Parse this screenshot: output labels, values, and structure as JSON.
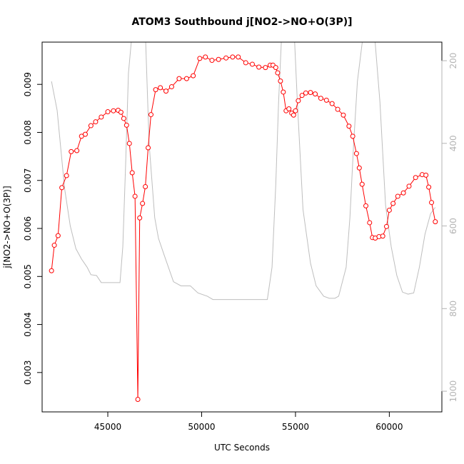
{
  "chart_data": {
    "type": "line",
    "title": "ATOM3 Southbound j[NO2->NO+O(3P)]",
    "xlabel": "UTC Seconds",
    "ylabel": "j[NO2->NO+O(3P)]",
    "xlim": [
      41500,
      62800
    ],
    "ylim": [
      0.00218,
      0.00988
    ],
    "x_ticks": [
      45000,
      50000,
      55000,
      60000
    ],
    "x_tick_labels": [
      "45000",
      "50000",
      "55000",
      "60000"
    ],
    "y_ticks": [
      0.003,
      0.004,
      0.005,
      0.006,
      0.007,
      0.008,
      0.009
    ],
    "y_tick_labels": [
      "0.003",
      "0.004",
      "0.005",
      "0.006",
      "0.007",
      "0.008",
      "0.009"
    ],
    "y2_ticks": [
      200,
      400,
      600,
      800,
      1000
    ],
    "y2_tick_labels": [
      "200",
      "400",
      "600",
      "800",
      "1000"
    ],
    "y2lim": [
      1050,
      155
    ],
    "colors": {
      "series": "#ff0000",
      "secondary": "#bebebe",
      "right_axis": "#b4b4b4"
    },
    "series": [
      {
        "color": "#ff0000",
        "marker": "open-circle",
        "x": [
          42000,
          42150,
          42350,
          42550,
          42800,
          43050,
          43350,
          43600,
          43800,
          44100,
          44350,
          44650,
          45000,
          45300,
          45550,
          45700,
          45850,
          46000,
          46150,
          46300,
          46450,
          46600,
          46700,
          46850,
          47000,
          47150,
          47300,
          47550,
          47800,
          48100,
          48400,
          48800,
          49200,
          49550,
          49900,
          50200,
          50550,
          50900,
          51300,
          51650,
          51950,
          52350,
          52700,
          53050,
          53400,
          53650,
          53800,
          53950,
          54050,
          54200,
          54350,
          54500,
          54650,
          54800,
          54900,
          55000,
          55150,
          55350,
          55550,
          55800,
          56050,
          56350,
          56650,
          56950,
          57250,
          57550,
          57850,
          58050,
          58250,
          58400,
          58550,
          58750,
          58950,
          59100,
          59250,
          59450,
          59650,
          59850,
          60000,
          60200,
          60450,
          60750,
          61050,
          61400,
          61750,
          61950,
          62100,
          62250,
          62450
        ],
        "y": [
          0.00512,
          0.00565,
          0.00585,
          0.00685,
          0.0071,
          0.0076,
          0.00762,
          0.00792,
          0.00796,
          0.00814,
          0.00822,
          0.00832,
          0.00843,
          0.00845,
          0.00846,
          0.00842,
          0.00829,
          0.00815,
          0.00777,
          0.00716,
          0.00667,
          0.00244,
          0.00622,
          0.00652,
          0.00687,
          0.00768,
          0.00837,
          0.00889,
          0.00893,
          0.00886,
          0.00895,
          0.00912,
          0.00912,
          0.00918,
          0.00954,
          0.00957,
          0.0095,
          0.00952,
          0.00955,
          0.00957,
          0.00957,
          0.00945,
          0.00942,
          0.00936,
          0.00935,
          0.0094,
          0.0094,
          0.00935,
          0.00924,
          0.00907,
          0.00884,
          0.00845,
          0.00849,
          0.0084,
          0.00836,
          0.00845,
          0.00866,
          0.00877,
          0.00882,
          0.00883,
          0.0088,
          0.00871,
          0.00867,
          0.0086,
          0.00848,
          0.00836,
          0.00813,
          0.00792,
          0.00756,
          0.00726,
          0.00692,
          0.00647,
          0.00612,
          0.00581,
          0.0058,
          0.00583,
          0.00584,
          0.00604,
          0.00638,
          0.00652,
          0.00667,
          0.00674,
          0.00688,
          0.00706,
          0.00712,
          0.00711,
          0.00686,
          0.00654,
          0.00614
        ]
      },
      {
        "color": "#bebebe",
        "axis": "right",
        "x": [
          42000,
          42300,
          42700,
          43000,
          43300,
          43600,
          43900,
          44100,
          44400,
          44650,
          45000,
          45400,
          45650,
          45800,
          45950,
          46100,
          46300,
          46550,
          47000,
          47200,
          47500,
          47700,
          48000,
          48500,
          48900,
          49400,
          49800,
          50300,
          50600,
          51000,
          51500,
          52000,
          52500,
          53000,
          53500,
          53750,
          53950,
          54100,
          54300,
          54500,
          54700,
          54900,
          55100,
          55400,
          55800,
          56100,
          56500,
          56800,
          57100,
          57300,
          57700,
          57900,
          58100,
          58300,
          58600,
          58800,
          59000,
          59200,
          59500,
          59800,
          60100,
          60400,
          60700,
          61000,
          61300,
          61600,
          61900,
          62200,
          62450
        ],
        "y": [
          250,
          320,
          510,
          600,
          655,
          680,
          700,
          718,
          720,
          737,
          737,
          737,
          737,
          650,
          450,
          230,
          130,
          100,
          130,
          400,
          580,
          630,
          670,
          735,
          745,
          745,
          762,
          770,
          778,
          778,
          778,
          778,
          778,
          778,
          778,
          700,
          500,
          300,
          100,
          80,
          70,
          100,
          300,
          560,
          690,
          745,
          770,
          775,
          775,
          770,
          700,
          580,
          400,
          250,
          140,
          100,
          90,
          130,
          300,
          550,
          650,
          720,
          760,
          765,
          762,
          700,
          620,
          570,
          555
        ]
      }
    ]
  }
}
